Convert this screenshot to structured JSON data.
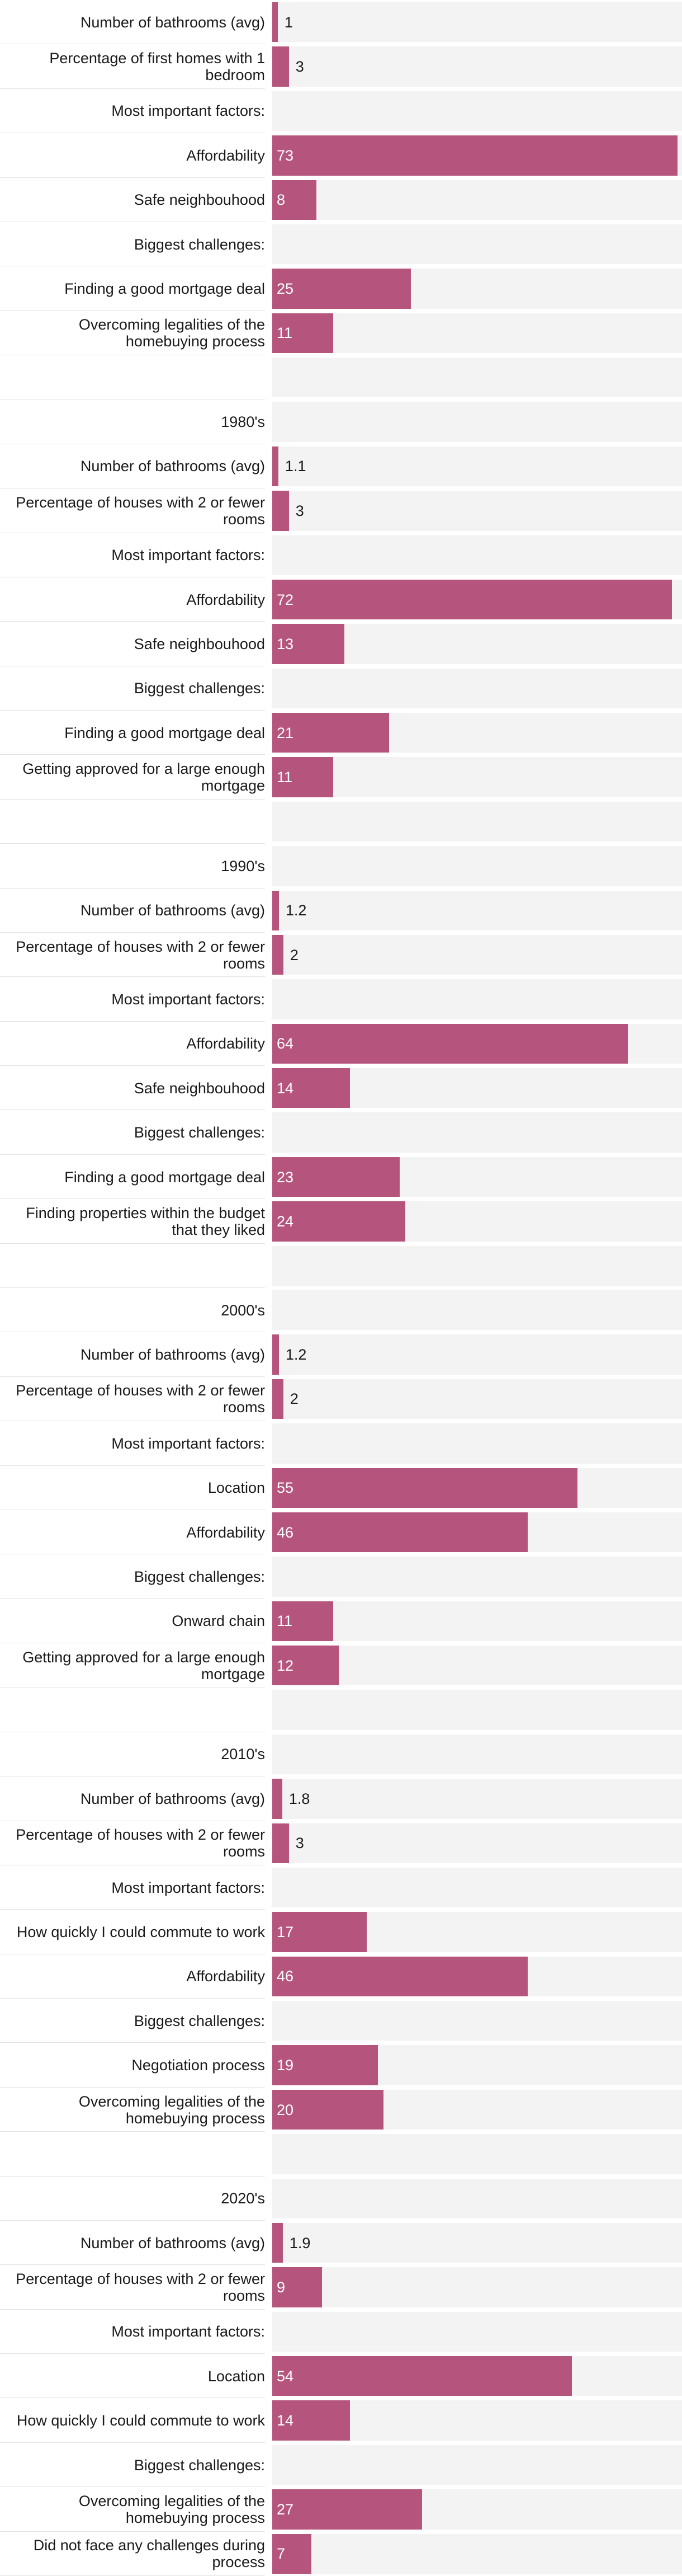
{
  "colors": {
    "bar": "#b5547c",
    "track": "#f3f3f3",
    "divider": "#e2e2e2"
  },
  "chart_data": {
    "type": "bar",
    "orientation": "horizontal",
    "title": "",
    "xlabel": "",
    "ylabel": "",
    "xlim": [
      0,
      73
    ],
    "rows": [
      {
        "label": "Number of bathrooms (avg)",
        "value": 1
      },
      {
        "label": "Percentage of first homes with 1 bedroom",
        "value": 3
      },
      {
        "label": "Most important factors:",
        "value": null
      },
      {
        "label": "Affordability",
        "value": 73
      },
      {
        "label": "Safe neighbouhood",
        "value": 8
      },
      {
        "label": "Biggest challenges:",
        "value": null
      },
      {
        "label": "Finding a good mortgage deal",
        "value": 25
      },
      {
        "label": "Overcoming legalities of the homebuying process",
        "value": 11
      },
      {
        "label": "",
        "value": null
      },
      {
        "label": "1980's",
        "value": null
      },
      {
        "label": "Number of bathrooms (avg)",
        "value": 1.1
      },
      {
        "label": "Percentage of houses with 2 or fewer rooms",
        "value": 3
      },
      {
        "label": "Most important factors:",
        "value": null
      },
      {
        "label": "Affordability",
        "value": 72
      },
      {
        "label": "Safe neighbouhood",
        "value": 13
      },
      {
        "label": "Biggest challenges:",
        "value": null
      },
      {
        "label": "Finding a good mortgage deal",
        "value": 21
      },
      {
        "label": "Getting approved for a large enough mortgage",
        "value": 11
      },
      {
        "label": "",
        "value": null
      },
      {
        "label": "1990's",
        "value": null
      },
      {
        "label": "Number of bathrooms (avg)",
        "value": 1.2
      },
      {
        "label": "Percentage of houses with 2 or fewer rooms",
        "value": 2
      },
      {
        "label": "Most important factors:",
        "value": null
      },
      {
        "label": "Affordability",
        "value": 64
      },
      {
        "label": "Safe neighbouhood",
        "value": 14
      },
      {
        "label": "Biggest challenges:",
        "value": null
      },
      {
        "label": "Finding a good mortgage deal",
        "value": 23
      },
      {
        "label": "Finding properties within the budget that they liked",
        "value": 24
      },
      {
        "label": "",
        "value": null
      },
      {
        "label": "2000's",
        "value": null
      },
      {
        "label": "Number of bathrooms (avg)",
        "value": 1.2
      },
      {
        "label": "Percentage of houses with 2 or fewer rooms",
        "value": 2
      },
      {
        "label": "Most important factors:",
        "value": null
      },
      {
        "label": "Location",
        "value": 55
      },
      {
        "label": "Affordability",
        "value": 46
      },
      {
        "label": "Biggest challenges:",
        "value": null
      },
      {
        "label": "Onward chain",
        "value": 11
      },
      {
        "label": "Getting approved for a large enough mortgage",
        "value": 12
      },
      {
        "label": "",
        "value": null
      },
      {
        "label": "2010's",
        "value": null
      },
      {
        "label": "Number of bathrooms (avg)",
        "value": 1.8
      },
      {
        "label": "Percentage of houses with 2 or fewer rooms",
        "value": 3
      },
      {
        "label": "Most important factors:",
        "value": null
      },
      {
        "label": "How quickly I could commute to work",
        "value": 17
      },
      {
        "label": "Affordability",
        "value": 46
      },
      {
        "label": "Biggest challenges:",
        "value": null
      },
      {
        "label": "Negotiation process",
        "value": 19
      },
      {
        "label": "Overcoming legalities of the homebuying process",
        "value": 20
      },
      {
        "label": "",
        "value": null
      },
      {
        "label": "2020's",
        "value": null
      },
      {
        "label": "Number of bathrooms (avg)",
        "value": 1.9
      },
      {
        "label": "Percentage of houses with 2 or fewer rooms",
        "value": 9
      },
      {
        "label": "Most important factors:",
        "value": null
      },
      {
        "label": "Location",
        "value": 54
      },
      {
        "label": "How quickly I could commute to work",
        "value": 14
      },
      {
        "label": "Biggest challenges:",
        "value": null
      },
      {
        "label": "Overcoming legalities of the homebuying process",
        "value": 27
      },
      {
        "label": "Did not face any challenges during process",
        "value": 7
      }
    ]
  }
}
